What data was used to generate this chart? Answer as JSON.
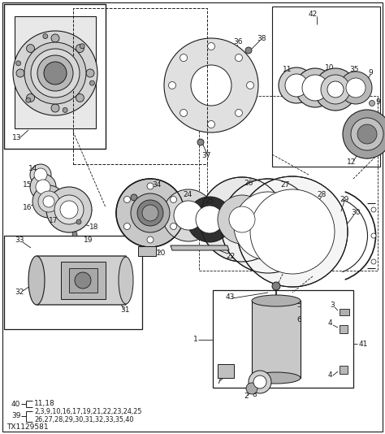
{
  "diagram_id": "TX1129581",
  "bg_color": "#ffffff",
  "line_color": "#1a1a1a",
  "text_color": "#1a1a1a",
  "ref_40_parts": "11,18",
  "ref_39_line1": "2,3,9,10,16,17,19,21,22,23,24,25",
  "ref_39_line2": "26,27,28,29,30,31,32,33,35,40"
}
